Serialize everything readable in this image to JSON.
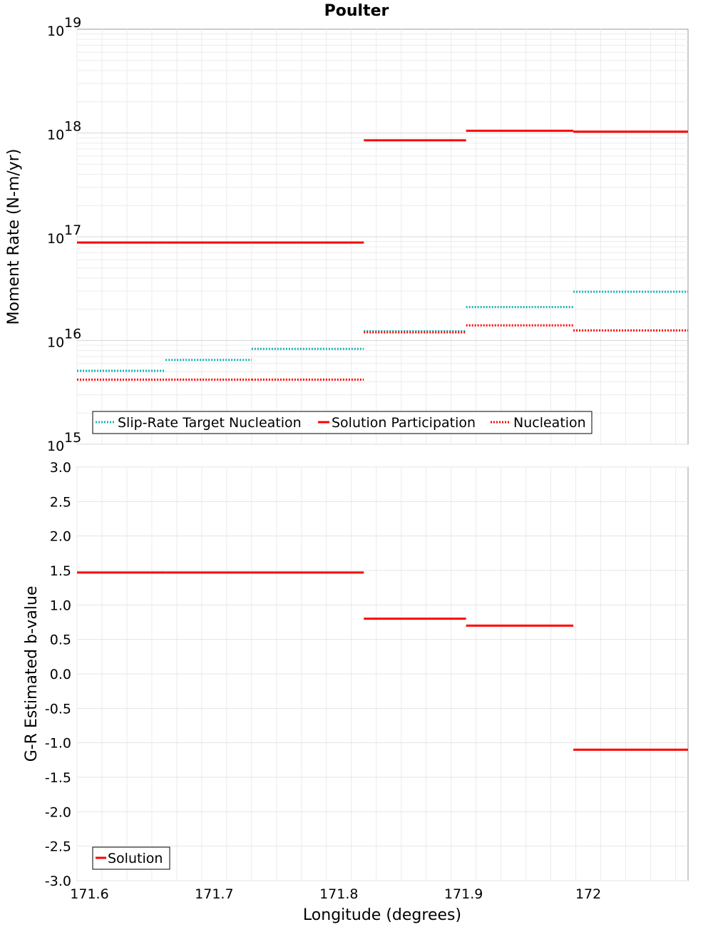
{
  "chart_data": [
    {
      "type": "line",
      "title": "Poulter",
      "ylabel": "Moment Rate (N-m/yr)",
      "yscale": "log",
      "ylim": [
        1000000000000000.0,
        1e+19
      ],
      "xlim": [
        171.59,
        172.08
      ],
      "y_tick_base": "10",
      "y_tick_exponents": [
        "15",
        "16",
        "17",
        "18",
        "19"
      ],
      "grid": true,
      "legend_position": "bottom-left",
      "series": [
        {
          "name": "Slip-Rate Target Nucleation",
          "style": "dotted",
          "color": "#1ab3b3",
          "segments": [
            {
              "x0": 171.59,
              "x1": 171.661,
              "y": 5100000000000000.0
            },
            {
              "x0": 171.661,
              "x1": 171.73,
              "y": 6500000000000000.0
            },
            {
              "x0": 171.73,
              "x1": 171.82,
              "y": 8300000000000000.0
            },
            {
              "x0": 171.82,
              "x1": 171.902,
              "y": 1.23e+16
            },
            {
              "x0": 171.902,
              "x1": 171.988,
              "y": 2.1e+16
            },
            {
              "x0": 171.988,
              "x1": 172.08,
              "y": 2.95e+16
            }
          ]
        },
        {
          "name": "Solution Participation",
          "style": "solid",
          "color": "#ff0000",
          "segments": [
            {
              "x0": 171.59,
              "x1": 171.661,
              "y": 8.8e+16
            },
            {
              "x0": 171.661,
              "x1": 171.73,
              "y": 8.8e+16
            },
            {
              "x0": 171.73,
              "x1": 171.82,
              "y": 8.8e+16
            },
            {
              "x0": 171.82,
              "x1": 171.902,
              "y": 8.5e+17
            },
            {
              "x0": 171.902,
              "x1": 171.988,
              "y": 1.05e+18
            },
            {
              "x0": 171.988,
              "x1": 172.08,
              "y": 1.03e+18
            }
          ]
        },
        {
          "name": "Nucleation",
          "style": "dotted",
          "color": "#ff0000",
          "segments": [
            {
              "x0": 171.59,
              "x1": 171.661,
              "y": 4200000000000000.0
            },
            {
              "x0": 171.661,
              "x1": 171.73,
              "y": 4200000000000000.0
            },
            {
              "x0": 171.73,
              "x1": 171.82,
              "y": 4200000000000000.0
            },
            {
              "x0": 171.82,
              "x1": 171.902,
              "y": 1.2e+16
            },
            {
              "x0": 171.902,
              "x1": 171.988,
              "y": 1.4e+16
            },
            {
              "x0": 171.988,
              "x1": 172.08,
              "y": 1.25e+16
            }
          ]
        }
      ]
    },
    {
      "type": "line",
      "ylabel": "G-R Estimated b-value",
      "xlabel": "Longitude (degrees)",
      "ylim": [
        -3.0,
        3.0
      ],
      "xlim": [
        171.59,
        172.08
      ],
      "y_ticks": [
        "3.0",
        "2.5",
        "2.0",
        "1.5",
        "1.0",
        "0.5",
        "0.0",
        "-0.5",
        "-1.0",
        "-1.5",
        "-2.0",
        "-2.5",
        "-3.0"
      ],
      "x_ticks": [
        "171.6",
        "171.7",
        "171.8",
        "171.9",
        "172"
      ],
      "grid": true,
      "legend_position": "bottom-left",
      "series": [
        {
          "name": "Solution",
          "style": "solid",
          "color": "#ff0000",
          "segments": [
            {
              "x0": 171.59,
              "x1": 171.661,
              "y": 1.47
            },
            {
              "x0": 171.661,
              "x1": 171.73,
              "y": 1.47
            },
            {
              "x0": 171.73,
              "x1": 171.82,
              "y": 1.47
            },
            {
              "x0": 171.82,
              "x1": 171.902,
              "y": 0.8
            },
            {
              "x0": 171.902,
              "x1": 171.988,
              "y": 0.7
            },
            {
              "x0": 171.988,
              "x1": 172.08,
              "y": -1.1
            }
          ]
        }
      ]
    }
  ]
}
